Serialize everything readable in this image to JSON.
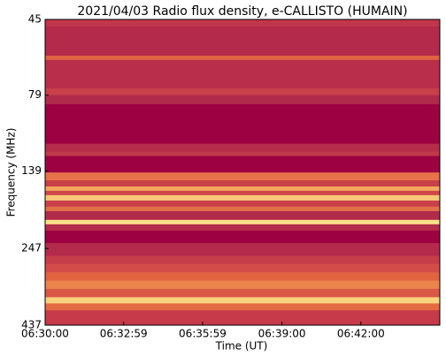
{
  "chart_data": {
    "type": "spectrogram",
    "title": "2021/04/03  Radio flux density, e-CALLISTO (HUMAIN)",
    "x_label": "Time (UT)",
    "y_label": "Frequency (MHz)",
    "xlim": [
      "06:30:00",
      "06:45:00"
    ],
    "xticks": [
      "06:30:00",
      "06:32:59",
      "06:35:59",
      "06:39:00",
      "06:42:00"
    ],
    "ylim": [
      45,
      437
    ],
    "yticks": [
      45,
      79,
      139,
      247,
      437
    ],
    "y_log": true,
    "y_inverted": true,
    "rows": [
      {
        "from": 45,
        "to": 47.4,
        "color": "#c0364a"
      },
      {
        "from": 47.4,
        "to": 58.9,
        "color": "#b32a4b"
      },
      {
        "from": 58.9,
        "to": 60.8,
        "color": "#e06442"
      },
      {
        "from": 60.8,
        "to": 75.1,
        "color": "#b82e4b"
      },
      {
        "from": 75.1,
        "to": 79,
        "color": "#c8404a"
      },
      {
        "from": 79,
        "to": 84.5,
        "color": "#b02a4b"
      },
      {
        "from": 84.5,
        "to": 113.4,
        "color": "#9e0142"
      },
      {
        "from": 113.4,
        "to": 120.2,
        "color": "#b62c4b"
      },
      {
        "from": 120.2,
        "to": 124.2,
        "color": "#c03a4a"
      },
      {
        "from": 124.2,
        "to": 140.4,
        "color": "#9e0142"
      },
      {
        "from": 140.4,
        "to": 148.8,
        "color": "#e8734a"
      },
      {
        "from": 148.8,
        "to": 155.8,
        "color": "#c84048"
      },
      {
        "from": 155.8,
        "to": 160.9,
        "color": "#f4a65e"
      },
      {
        "from": 160.9,
        "to": 166.2,
        "color": "#d0484a"
      },
      {
        "from": 166.2,
        "to": 173,
        "color": "#f8c878"
      },
      {
        "from": 173,
        "to": 181,
        "color": "#c8404a"
      },
      {
        "from": 181,
        "to": 187.2,
        "color": "#e27048"
      },
      {
        "from": 187.2,
        "to": 199.7,
        "color": "#b02a4b"
      },
      {
        "from": 199.7,
        "to": 206.4,
        "color": "#fbe08a"
      },
      {
        "from": 206.4,
        "to": 216.3,
        "color": "#b42c4b"
      },
      {
        "from": 216.3,
        "to": 237.3,
        "color": "#9e0142"
      },
      {
        "from": 237.3,
        "to": 260.9,
        "color": "#b32a4b"
      },
      {
        "from": 260.9,
        "to": 277.4,
        "color": "#c63e4a"
      },
      {
        "from": 277.4,
        "to": 295,
        "color": "#d44c4a"
      },
      {
        "from": 295,
        "to": 313.7,
        "color": "#e06440"
      },
      {
        "from": 313.7,
        "to": 333.6,
        "color": "#ec844e"
      },
      {
        "from": 333.6,
        "to": 355,
        "color": "#d95846"
      },
      {
        "from": 355,
        "to": 371.7,
        "color": "#f9d27e"
      },
      {
        "from": 371.7,
        "to": 391.3,
        "color": "#e46a44"
      },
      {
        "from": 391.3,
        "to": 437,
        "color": "#c63a4a"
      }
    ]
  }
}
